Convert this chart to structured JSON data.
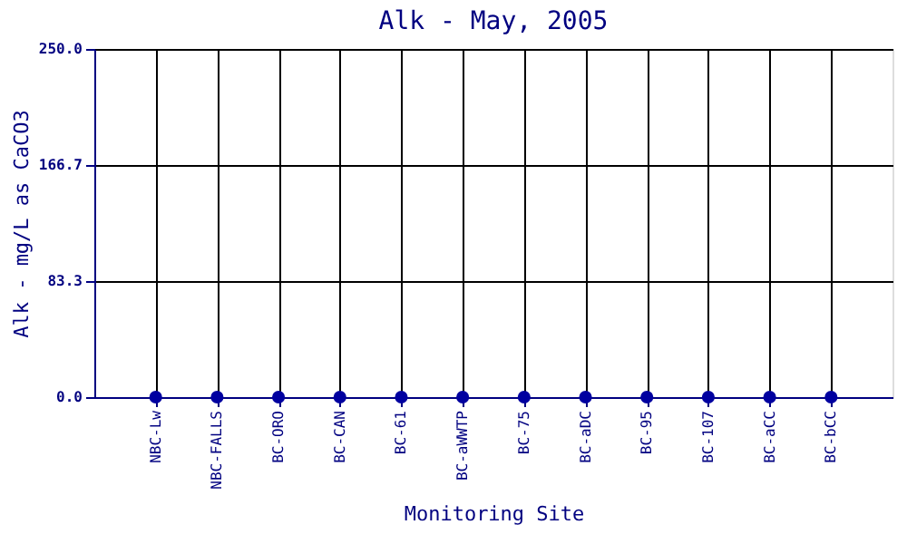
{
  "chart_data": {
    "type": "scatter",
    "title": "Alk - May, 2005",
    "xlabel": "Monitoring Site",
    "ylabel": "Alk - mg/L as CaCO3",
    "categories": [
      "NBC-Lw",
      "NBC-FALLS",
      "BC-ORO",
      "BC-CAN",
      "BC-61",
      "BC-aWWTP",
      "BC-75",
      "BC-aDC",
      "BC-95",
      "BC-107",
      "BC-aCC",
      "BC-bCC"
    ],
    "series": [
      {
        "color": "#0000a0",
        "values": [
          0,
          0,
          0,
          0,
          0,
          0,
          0,
          0,
          0,
          0,
          0,
          0
        ]
      }
    ],
    "ylim": [
      0,
      250
    ],
    "yticks": [
      {
        "value": 0,
        "label": "0.0"
      },
      {
        "value": 83.3,
        "label": "83.3"
      },
      {
        "value": 166.7,
        "label": "166.7"
      },
      {
        "value": 250,
        "label": "250.0"
      }
    ],
    "grid": true,
    "marker": "circle"
  }
}
